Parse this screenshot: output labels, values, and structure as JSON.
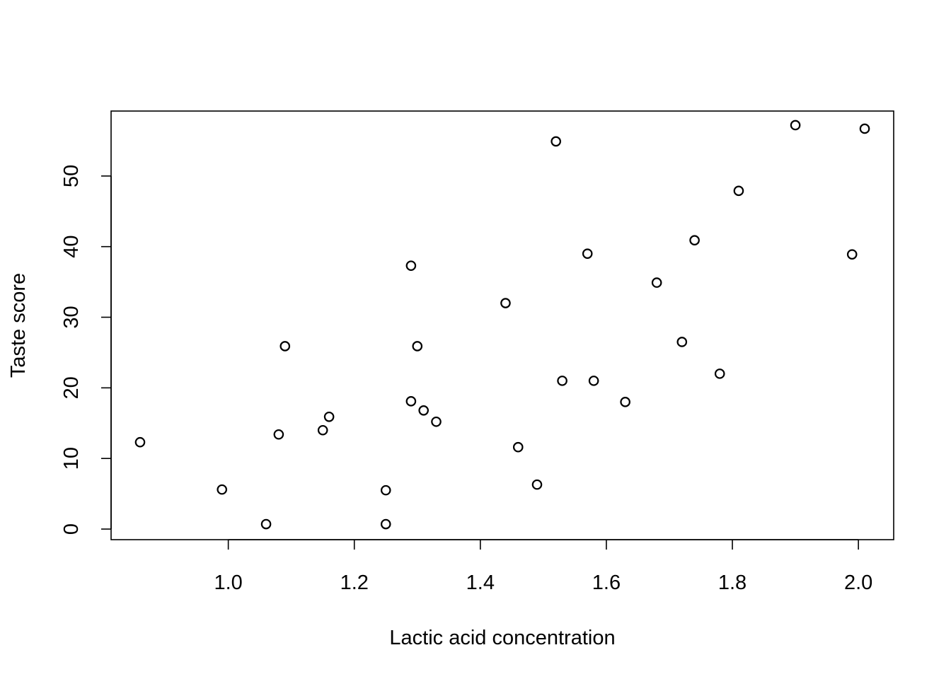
{
  "chart_data": {
    "type": "scatter",
    "title": "",
    "xlabel": "Lactic acid concentration",
    "ylabel": "Taste score",
    "xlim": [
      0.814,
      2.056
    ],
    "ylim": [
      -1.5,
      59.2
    ],
    "x_ticks": [
      1.0,
      1.2,
      1.4,
      1.6,
      1.8,
      2.0
    ],
    "y_ticks": [
      0,
      10,
      20,
      30,
      40,
      50
    ],
    "grid": false,
    "legend": "none",
    "marker": "open-circle",
    "points": [
      {
        "x": 0.86,
        "y": 12.3
      },
      {
        "x": 0.99,
        "y": 5.6
      },
      {
        "x": 1.06,
        "y": 0.7
      },
      {
        "x": 1.08,
        "y": 13.4
      },
      {
        "x": 1.09,
        "y": 25.9
      },
      {
        "x": 1.15,
        "y": 14.0
      },
      {
        "x": 1.16,
        "y": 15.9
      },
      {
        "x": 1.25,
        "y": 5.5
      },
      {
        "x": 1.25,
        "y": 0.7
      },
      {
        "x": 1.29,
        "y": 37.3
      },
      {
        "x": 1.29,
        "y": 18.1
      },
      {
        "x": 1.3,
        "y": 25.9
      },
      {
        "x": 1.31,
        "y": 16.8
      },
      {
        "x": 1.33,
        "y": 15.2
      },
      {
        "x": 1.44,
        "y": 32.0
      },
      {
        "x": 1.46,
        "y": 11.6
      },
      {
        "x": 1.49,
        "y": 6.3
      },
      {
        "x": 1.52,
        "y": 54.9
      },
      {
        "x": 1.53,
        "y": 21.0
      },
      {
        "x": 1.57,
        "y": 39.0
      },
      {
        "x": 1.58,
        "y": 21.0
      },
      {
        "x": 1.63,
        "y": 18.0
      },
      {
        "x": 1.68,
        "y": 34.9
      },
      {
        "x": 1.72,
        "y": 26.5
      },
      {
        "x": 1.74,
        "y": 40.9
      },
      {
        "x": 1.78,
        "y": 22.0
      },
      {
        "x": 1.81,
        "y": 47.9
      },
      {
        "x": 1.9,
        "y": 57.2
      },
      {
        "x": 1.99,
        "y": 38.9
      },
      {
        "x": 2.01,
        "y": 56.7
      }
    ]
  }
}
